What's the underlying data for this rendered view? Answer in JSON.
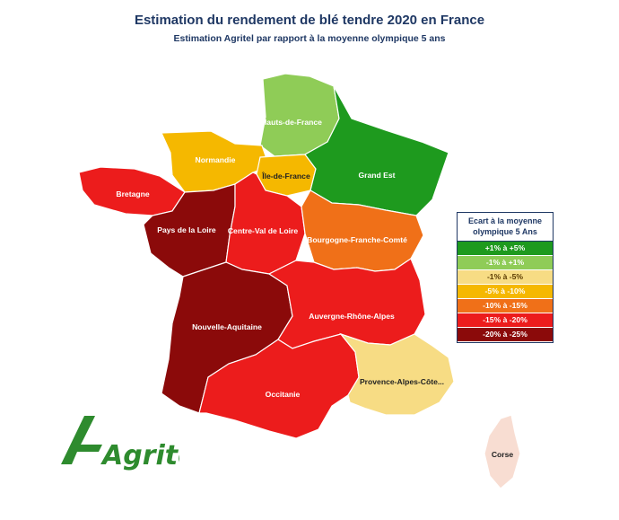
{
  "title": "Estimation du rendement de blé tendre 2020 en France",
  "subtitle": "Estimation Agritel par rapport à la moyenne olympique 5 ans",
  "regions": {
    "hauts_de_france": {
      "name": "Hauts-de-France",
      "color": "#8fcc57"
    },
    "normandie": {
      "name": "Normandie",
      "color": "#f5b800"
    },
    "ile_de_france": {
      "name": "Île-de-France",
      "color": "#f5b800"
    },
    "grand_est": {
      "name": "Grand Est",
      "color": "#1e9a1e"
    },
    "bretagne": {
      "name": "Bretagne",
      "color": "#ec1c1c"
    },
    "pays_de_la_loire": {
      "name": "Pays de la Loire",
      "color": "#8b0a0a"
    },
    "centre_val_de_loire": {
      "name": "Centre-Val de Loire",
      "color": "#ec1c1c"
    },
    "bourgogne_franche_comte": {
      "name": "Bourgogne-Franche-Comté",
      "color": "#f07018"
    },
    "nouvelle_aquitaine": {
      "name": "Nouvelle-Aquitaine",
      "color": "#8b0a0a"
    },
    "auvergne_rhone_alpes": {
      "name": "Auvergne-Rhône-Alpes",
      "color": "#ec1c1c"
    },
    "occitanie": {
      "name": "Occitanie",
      "color": "#ec1c1c"
    },
    "provence": {
      "name": "Provence-Alpes-Côte...",
      "color": "#f7dc84"
    },
    "corse": {
      "name": "Corse",
      "color": "#f8ddd2"
    }
  },
  "legend": {
    "title": "Ecart à la moyenne olympique 5 Ans",
    "items": [
      {
        "label": "+1% à +5%",
        "color": "#1e9a1e"
      },
      {
        "label": "-1% à +1%",
        "color": "#8fcc57"
      },
      {
        "label": "-1% à -5%",
        "color": "#f7dc84"
      },
      {
        "label": "-5% à -10%",
        "color": "#f5b800"
      },
      {
        "label": "-10% à -15%",
        "color": "#f07018"
      },
      {
        "label": "-15% à -20%",
        "color": "#ec1c1c"
      },
      {
        "label": "-20% à -25%",
        "color": "#8b0a0a"
      }
    ]
  },
  "logo": {
    "text": "Agritel",
    "color": "#2e8b2e"
  }
}
